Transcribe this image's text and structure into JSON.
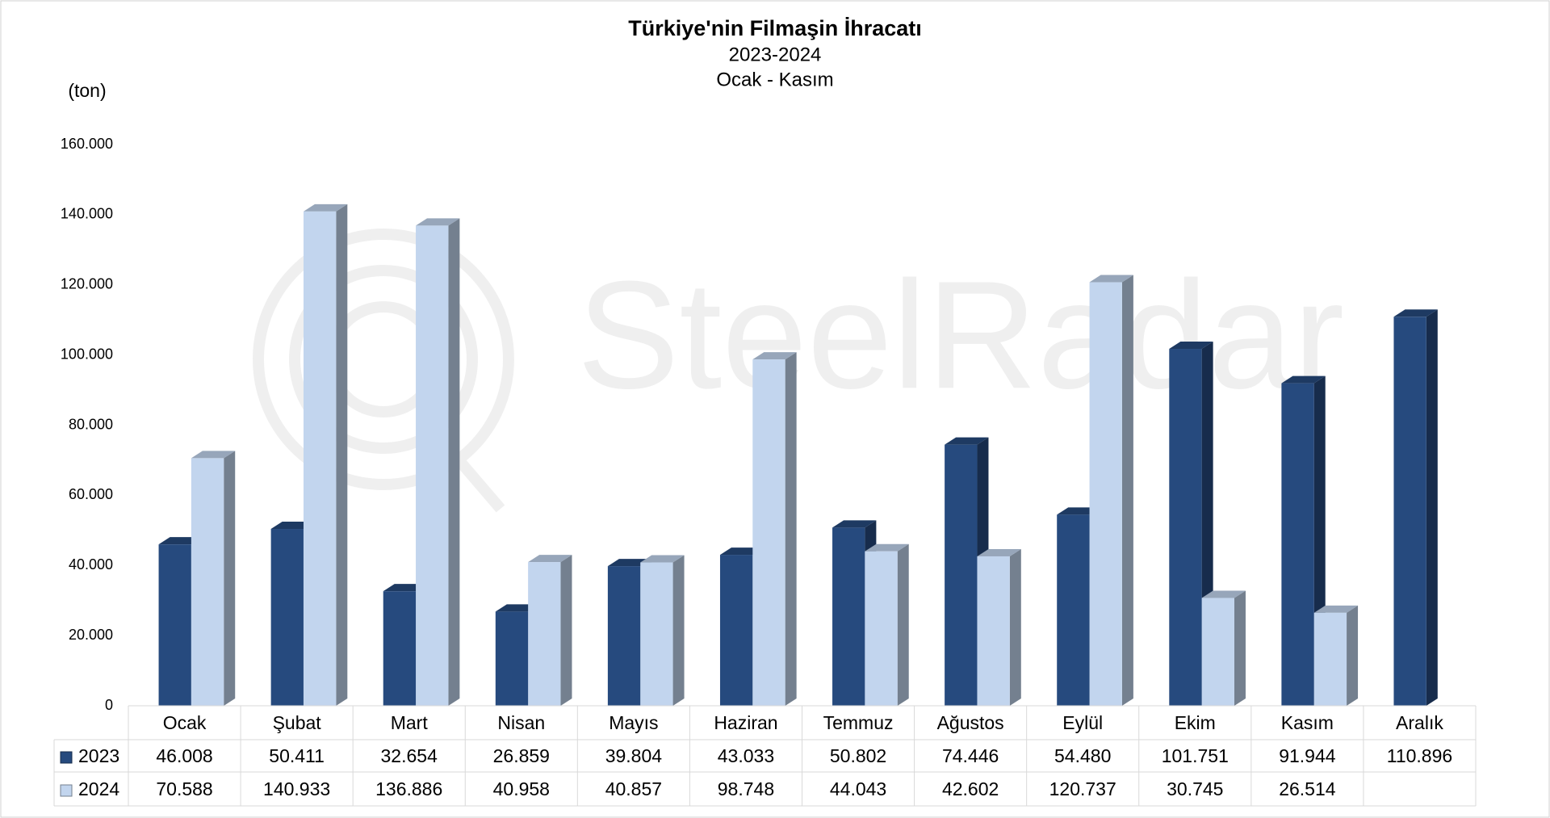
{
  "chart_data": {
    "type": "bar",
    "title": "Türkiye'nin Filmaşin İhracatı",
    "subtitle": "2023-2024",
    "period": "Ocak - Kasım",
    "y_label": "(ton)",
    "watermark": "SteelRadar",
    "categories": [
      "Ocak",
      "Şubat",
      "Mart",
      "Nisan",
      "Mayıs",
      "Haziran",
      "Temmuz",
      "Ağustos",
      "Eylül",
      "Ekim",
      "Kasım",
      "Aralık"
    ],
    "series": [
      {
        "name": "2023",
        "color": "#264a7e",
        "values": [
          46008,
          50411,
          32654,
          26859,
          39804,
          43033,
          50802,
          74446,
          54480,
          101751,
          91944,
          110896
        ],
        "value_labels": [
          "46.008",
          "50.411",
          "32.654",
          "26.859",
          "39.804",
          "43.033",
          "50.802",
          "74.446",
          "54.480",
          "101.751",
          "91.944",
          "110.896"
        ]
      },
      {
        "name": "2024",
        "color": "#c2d5ee",
        "values": [
          70588,
          140933,
          136886,
          40958,
          40857,
          98748,
          44043,
          42602,
          120737,
          30745,
          26514,
          null
        ],
        "value_labels": [
          "70.588",
          "140.933",
          "136.886",
          "40.958",
          "40.857",
          "98.748",
          "44.043",
          "42.602",
          "120.737",
          "30.745",
          "26.514",
          null
        ]
      }
    ],
    "ylim": [
      0,
      160000
    ],
    "yticks": [
      0,
      {
        "value": 20000,
        "label": "20.000"
      },
      {
        "value": 40000,
        "label": "40.000"
      },
      {
        "value": 60000,
        "label": "60.000"
      },
      {
        "value": 80000,
        "label": "80.000"
      },
      {
        "value": 100000,
        "label": "100.000"
      },
      {
        "value": 120000,
        "label": "120.000"
      },
      {
        "value": 140000,
        "label": "140.000"
      },
      {
        "value": 160000,
        "label": "160.000"
      }
    ],
    "grid": false
  }
}
